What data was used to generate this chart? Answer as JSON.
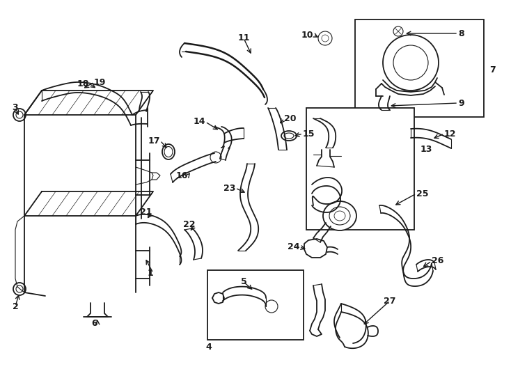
{
  "bg_color": "#ffffff",
  "line_color": "#1a1a1a",
  "fig_width": 7.34,
  "fig_height": 5.4,
  "lw": 1.3,
  "lw_thin": 0.8,
  "label_fontsize": 9
}
